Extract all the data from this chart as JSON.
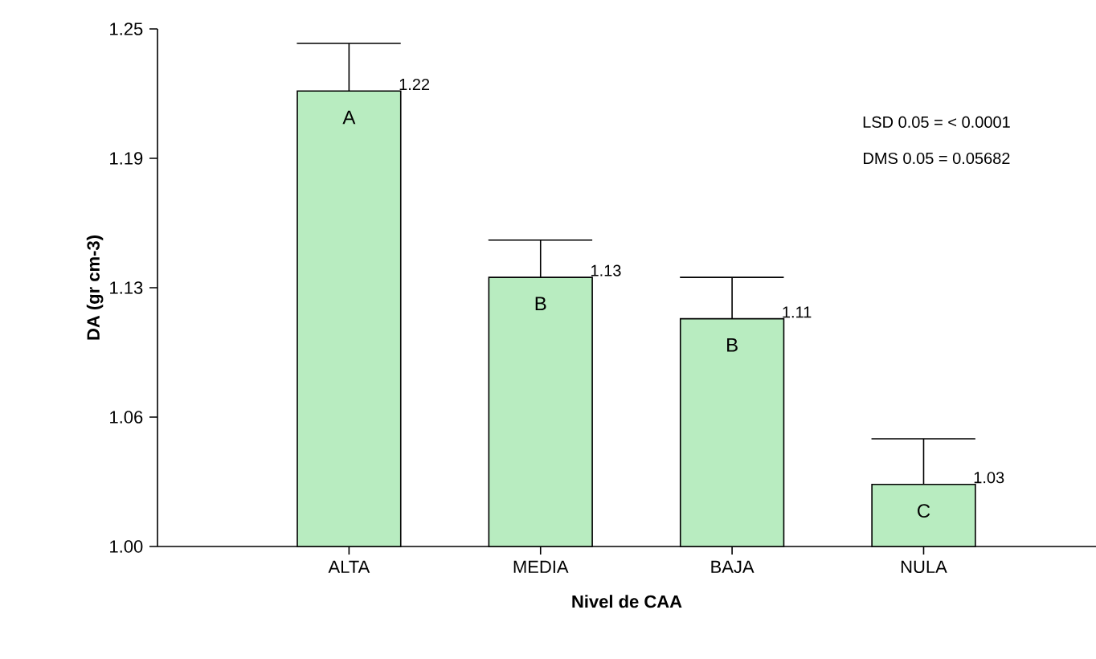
{
  "chart_data": {
    "type": "bar",
    "xlabel": "Nivel de CAA",
    "ylabel": "DA (gr cm-3)",
    "categories": [
      "ALTA",
      "MEDIA",
      "BAJA",
      "NULA"
    ],
    "values": [
      1.22,
      1.13,
      1.11,
      1.03
    ],
    "errors": [
      [
        1.22,
        1.243
      ],
      [
        1.13,
        1.148
      ],
      [
        1.11,
        1.13
      ],
      [
        1.03,
        1.052
      ]
    ],
    "color": "#b8ecc0",
    "data_labels": true,
    "ylim": [
      1.0,
      1.25
    ],
    "yticks": [
      {
        "value": 1.0,
        "label": "1.00"
      },
      {
        "value": 1.0625,
        "label": "1.06"
      },
      {
        "value": 1.125,
        "label": "1.13"
      },
      {
        "value": 1.1875,
        "label": "1.19"
      },
      {
        "value": 1.25,
        "label": "1.25"
      }
    ],
    "annotations": [
      "A",
      "B",
      "B",
      "C",
      "LSD 0.05 = < 0.0001",
      "DMS 0.05 = 0.05682"
    ],
    "grid": false
  }
}
